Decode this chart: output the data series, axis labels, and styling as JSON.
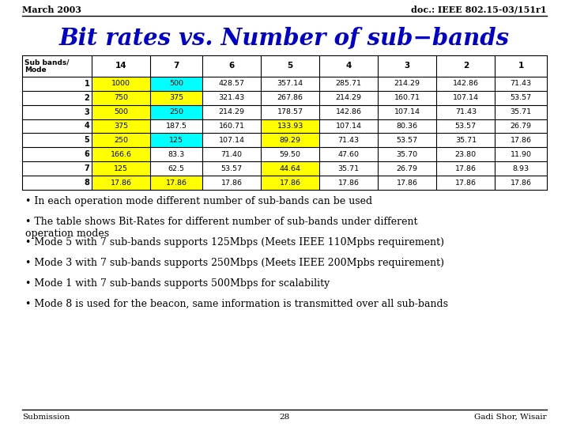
{
  "title": "Bit rates vs. Number of sub−bands",
  "header_left": "March 2003",
  "header_right": "doc.: IEEE 802.15-03/151r1",
  "footer_left": "Submission",
  "footer_center": "28",
  "footer_right": "Gadi Shor, Wisair",
  "col_headers": [
    "Sub bands/\nMode",
    "14",
    "7",
    "6",
    "5",
    "4",
    "3",
    "2",
    "1"
  ],
  "rows": [
    [
      "1",
      "1000",
      "500",
      "428.57",
      "357.14",
      "285.71",
      "214.29",
      "142.86",
      "71.43"
    ],
    [
      "2",
      "750",
      "375",
      "321.43",
      "267.86",
      "214.29",
      "160.71",
      "107.14",
      "53.57"
    ],
    [
      "3",
      "500",
      "250",
      "214.29",
      "178.57",
      "142.86",
      "107.14",
      "71.43",
      "35.71"
    ],
    [
      "4",
      "375",
      "187.5",
      "160.71",
      "133.93",
      "107.14",
      "80.36",
      "53.57",
      "26.79"
    ],
    [
      "5",
      "250",
      "125",
      "107.14",
      "89.29",
      "71.43",
      "53.57",
      "35.71",
      "17.86"
    ],
    [
      "6",
      "166.6",
      "83.3",
      "71.40",
      "59.50",
      "47.60",
      "35.70",
      "23.80",
      "11.90"
    ],
    [
      "7",
      "125",
      "62.5",
      "53.57",
      "44.64",
      "35.71",
      "26.79",
      "17.86",
      "8.93"
    ],
    [
      "8",
      "17.86",
      "17.86",
      "17.86",
      "17.86",
      "17.86",
      "17.86",
      "17.86",
      "17.86"
    ]
  ],
  "cell_colors": {
    "1_1": "#FFFF00",
    "1_2": "#00FFFF",
    "2_1": "#FFFF00",
    "2_2": "#FFFF00",
    "3_1": "#FFFF00",
    "3_2": "#00FFFF",
    "4_1": "#FFFF00",
    "4_4": "#FFFF00",
    "5_1": "#FFFF00",
    "5_2": "#00FFFF",
    "5_4": "#FFFF00",
    "6_1": "#FFFF00",
    "7_1": "#FFFF00",
    "7_4": "#FFFF00",
    "8_1": "#FFFF00",
    "8_2": "#FFFF00",
    "8_4": "#FFFF00"
  },
  "bullet_points": [
    "In each operation mode different number of sub-bands can be used",
    "The table shows Bit-Rates for different number of sub-bands under different\noperation modes",
    "Mode 5 with 7 sub-bands supports 125Mbps (Meets IEEE 110Mpbs requirement)",
    "Mode 3 with 7 sub-bands supports 250Mbps (Meets IEEE 200Mpbs requirement)",
    "Mode 1 with 7 sub-bands supports 500Mbps for scalability",
    "Mode 8 is used for the beacon, same information is transmitted over all sub-bands"
  ],
  "title_color": "#0000CC",
  "bg_color": "#FFFFFF",
  "table_text_color": "#000000",
  "header_color": "#000000"
}
